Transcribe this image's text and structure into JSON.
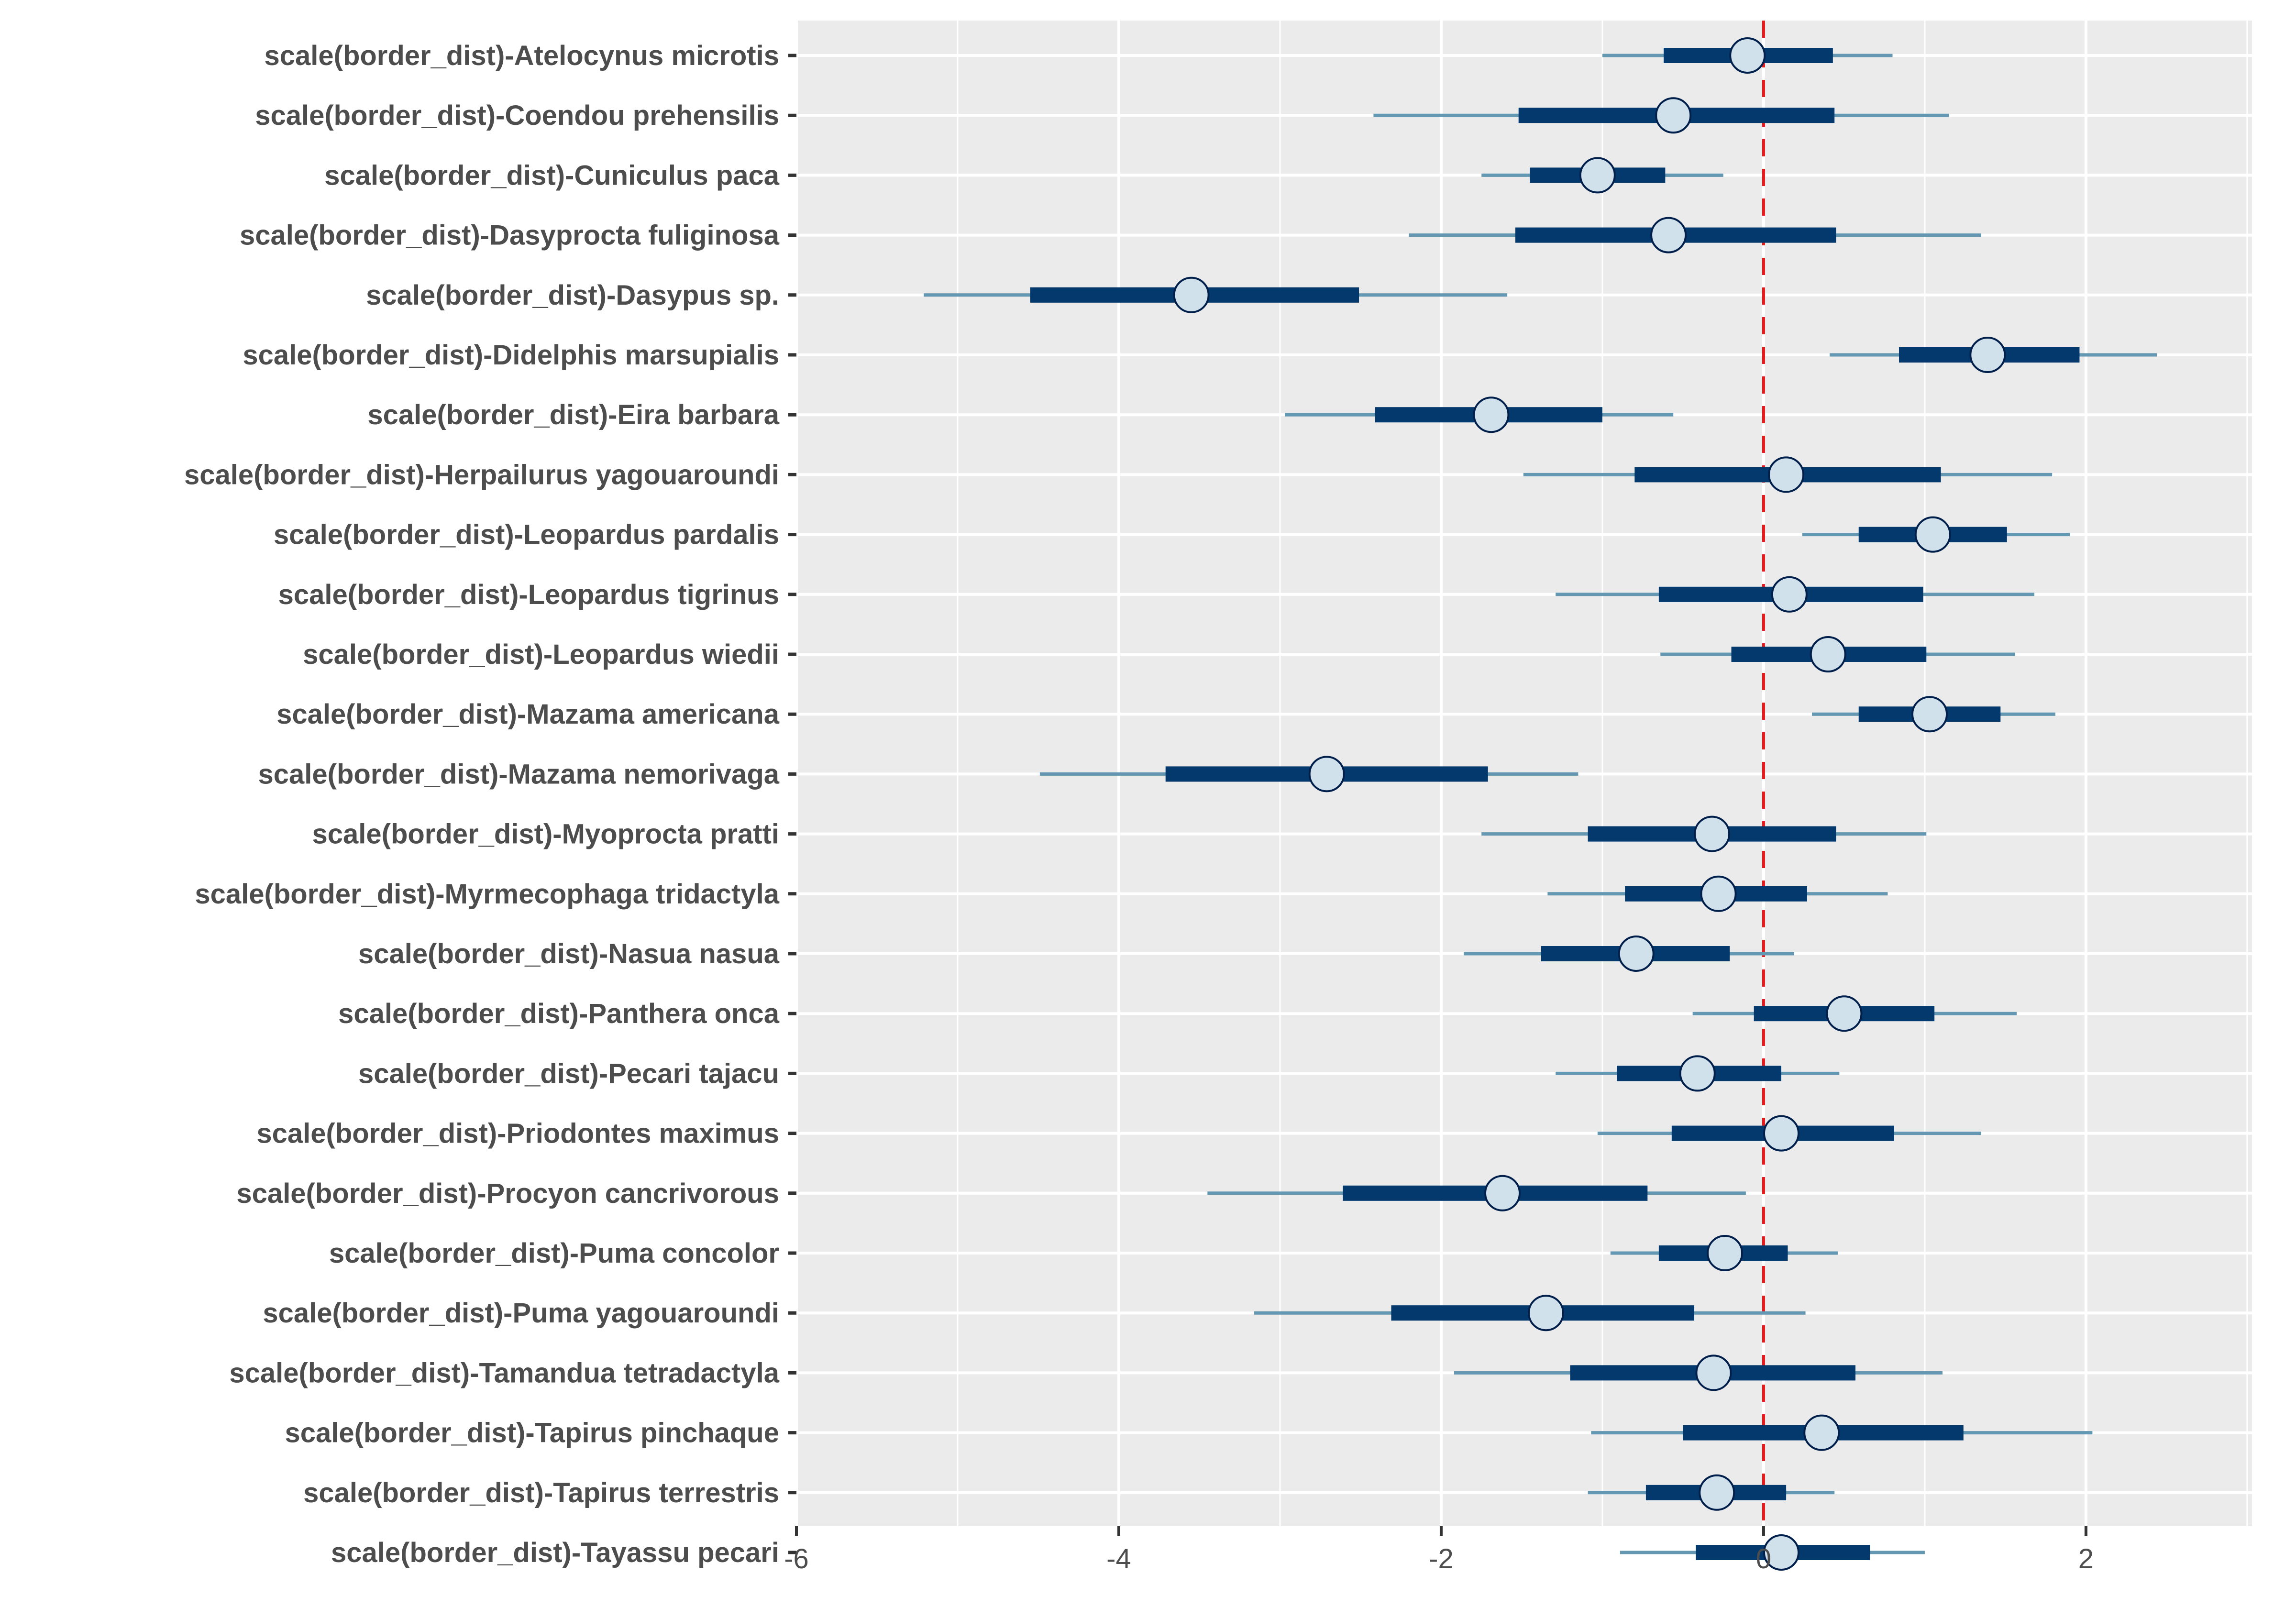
{
  "chart_data": {
    "type": "interval",
    "title": "",
    "xlabel": "",
    "ylabel": "",
    "xlim": [
      -6,
      3.03
    ],
    "xticks": [
      -6,
      -4,
      -2,
      0,
      2
    ],
    "xtick_labels": [
      "-6",
      "-4",
      "-2",
      "0",
      "2"
    ],
    "minor_gridlines": [
      -5,
      -3,
      -1,
      1,
      3
    ],
    "reference_line": {
      "x": 0,
      "style": "dashed",
      "color": "#e41a1c"
    },
    "grid": true,
    "legend": "none",
    "colors": {
      "panel_background": "#ebebeb",
      "gridline": "#ffffff",
      "outer_interval": "#6497b1",
      "inner_interval": "#03396c",
      "point_fill": "#d1e1ec",
      "point_outline": "#011f4b",
      "axis_text": "#4d4d4d",
      "tick": "#333333"
    },
    "interval_description": "thin line = outer interval (ll..hh), thick bar = inner interval (l..h), circle = point estimate (m)",
    "rows": [
      {
        "label": "scale(border_dist)-Atelocynus microtis",
        "ll": -1.0,
        "l": -0.62,
        "m": -0.1,
        "h": 0.43,
        "hh": 0.8
      },
      {
        "label": "scale(border_dist)-Coendou prehensilis",
        "ll": -2.42,
        "l": -1.52,
        "m": -0.56,
        "h": 0.44,
        "hh": 1.15
      },
      {
        "label": "scale(border_dist)-Cuniculus paca",
        "ll": -1.75,
        "l": -1.45,
        "m": -1.03,
        "h": -0.61,
        "hh": -0.25
      },
      {
        "label": "scale(border_dist)-Dasyprocta fuliginosa",
        "ll": -2.2,
        "l": -1.54,
        "m": -0.59,
        "h": 0.45,
        "hh": 1.35
      },
      {
        "label": "scale(border_dist)-Dasypus sp.",
        "ll": -5.21,
        "l": -4.55,
        "m": -3.55,
        "h": -2.51,
        "hh": -1.59
      },
      {
        "label": "scale(border_dist)-Didelphis marsupialis",
        "ll": 0.41,
        "l": 0.84,
        "m": 1.39,
        "h": 1.96,
        "hh": 2.44
      },
      {
        "label": "scale(border_dist)-Eira barbara",
        "ll": -2.97,
        "l": -2.41,
        "m": -1.69,
        "h": -1.0,
        "hh": -0.56
      },
      {
        "label": "scale(border_dist)-Herpailurus yagouaroundi",
        "ll": -1.49,
        "l": -0.8,
        "m": 0.14,
        "h": 1.1,
        "hh": 1.79
      },
      {
        "label": "scale(border_dist)-Leopardus pardalis",
        "ll": 0.24,
        "l": 0.59,
        "m": 1.05,
        "h": 1.51,
        "hh": 1.9
      },
      {
        "label": "scale(border_dist)-Leopardus tigrinus",
        "ll": -1.29,
        "l": -0.65,
        "m": 0.16,
        "h": 0.99,
        "hh": 1.68
      },
      {
        "label": "scale(border_dist)-Leopardus wiedii",
        "ll": -0.64,
        "l": -0.2,
        "m": 0.4,
        "h": 1.01,
        "hh": 1.56
      },
      {
        "label": "scale(border_dist)-Mazama americana",
        "ll": 0.3,
        "l": 0.59,
        "m": 1.03,
        "h": 1.47,
        "hh": 1.81
      },
      {
        "label": "scale(border_dist)-Mazama nemorivaga",
        "ll": -4.49,
        "l": -3.71,
        "m": -2.71,
        "h": -1.71,
        "hh": -1.15
      },
      {
        "label": "scale(border_dist)-Myoprocta pratti",
        "ll": -1.75,
        "l": -1.09,
        "m": -0.32,
        "h": 0.45,
        "hh": 1.01
      },
      {
        "label": "scale(border_dist)-Myrmecophaga tridactyla",
        "ll": -1.34,
        "l": -0.86,
        "m": -0.28,
        "h": 0.27,
        "hh": 0.77
      },
      {
        "label": "scale(border_dist)-Nasua nasua",
        "ll": -1.86,
        "l": -1.38,
        "m": -0.79,
        "h": -0.21,
        "hh": 0.19
      },
      {
        "label": "scale(border_dist)-Panthera onca",
        "ll": -0.44,
        "l": -0.06,
        "m": 0.5,
        "h": 1.06,
        "hh": 1.57
      },
      {
        "label": "scale(border_dist)-Pecari tajacu",
        "ll": -1.29,
        "l": -0.91,
        "m": -0.41,
        "h": 0.11,
        "hh": 0.47
      },
      {
        "label": "scale(border_dist)-Priodontes maximus",
        "ll": -1.03,
        "l": -0.57,
        "m": 0.11,
        "h": 0.81,
        "hh": 1.35
      },
      {
        "label": "scale(border_dist)-Procyon cancrivorous",
        "ll": -3.45,
        "l": -2.61,
        "m": -1.62,
        "h": -0.72,
        "hh": -0.11
      },
      {
        "label": "scale(border_dist)-Puma concolor",
        "ll": -0.95,
        "l": -0.65,
        "m": -0.24,
        "h": 0.15,
        "hh": 0.46
      },
      {
        "label": "scale(border_dist)-Puma yagouaroundi",
        "ll": -3.16,
        "l": -2.31,
        "m": -1.35,
        "h": -0.43,
        "hh": 0.26
      },
      {
        "label": "scale(border_dist)-Tamandua tetradactyla",
        "ll": -1.92,
        "l": -1.2,
        "m": -0.31,
        "h": 0.57,
        "hh": 1.11
      },
      {
        "label": "scale(border_dist)-Tapirus pinchaque",
        "ll": -1.07,
        "l": -0.5,
        "m": 0.36,
        "h": 1.24,
        "hh": 2.04
      },
      {
        "label": "scale(border_dist)-Tapirus terrestris",
        "ll": -1.09,
        "l": -0.73,
        "m": -0.29,
        "h": 0.14,
        "hh": 0.44
      },
      {
        "label": "scale(border_dist)-Tayassu pecari",
        "ll": -0.89,
        "l": -0.42,
        "m": 0.11,
        "h": 0.66,
        "hh": 1.0
      }
    ]
  }
}
